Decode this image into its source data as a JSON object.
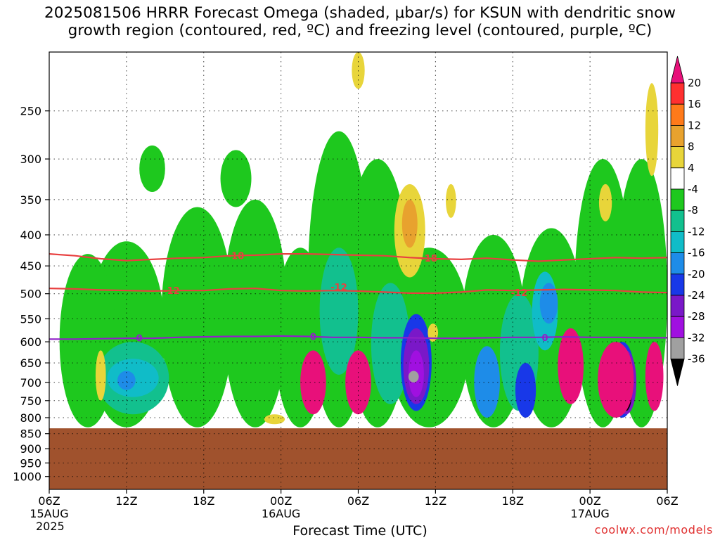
{
  "title": {
    "line1": "2025081506 HRRR Forecast Omega (shaded, μbar/s) for KSUN with dendritic snow",
    "line2": "growth region (contoured, red, ºC) and freezing level (contoured, purple, ºC)"
  },
  "chart_data": {
    "type": "heatmap",
    "xlabel": "Forecast Time (UTC)",
    "ylabel": "",
    "y_scale": "log-pressure",
    "y_inverted": true,
    "ylim": [
      1050,
      200
    ],
    "y_ticks": [
      250,
      300,
      350,
      400,
      450,
      500,
      550,
      600,
      650,
      700,
      750,
      800,
      850,
      900,
      950,
      1000
    ],
    "xlim": [
      "2025-08-15 06Z",
      "2025-08-17 06Z"
    ],
    "x_ticks": [
      {
        "label": "06Z",
        "date": "15AUG",
        "year": "2025"
      },
      {
        "label": "12Z",
        "date": "",
        "year": ""
      },
      {
        "label": "18Z",
        "date": "",
        "year": ""
      },
      {
        "label": "00Z",
        "date": "16AUG",
        "year": ""
      },
      {
        "label": "06Z",
        "date": "",
        "year": ""
      },
      {
        "label": "12Z",
        "date": "",
        "year": ""
      },
      {
        "label": "18Z",
        "date": "",
        "year": ""
      },
      {
        "label": "00Z",
        "date": "17AUG",
        "year": ""
      },
      {
        "label": "06Z",
        "date": "",
        "year": ""
      }
    ],
    "grid": true,
    "ground_below_hpa": 833,
    "colorbar": {
      "labels": [
        "20",
        "16",
        "12",
        "8",
        "4",
        "-4",
        "-8",
        "-12",
        "-16",
        "-20",
        "-24",
        "-28",
        "-32",
        "-36"
      ],
      "bins": [
        {
          "range": ">20",
          "color": "#e8107a"
        },
        {
          "range": "16–20",
          "color": "#ff3030"
        },
        {
          "range": "12–16",
          "color": "#ff7a1a"
        },
        {
          "range": "8–12",
          "color": "#e8a22e"
        },
        {
          "range": "4–8",
          "color": "#e8d53a"
        },
        {
          "range": "-4–4",
          "color": "#ffffff"
        },
        {
          "range": "-8–-4",
          "color": "#1ec81e"
        },
        {
          "range": "-12–-8",
          "color": "#12c08e"
        },
        {
          "range": "-16–-12",
          "color": "#10bcc8"
        },
        {
          "range": "-20–-16",
          "color": "#1e8ce8"
        },
        {
          "range": "-24–-20",
          "color": "#1838e8"
        },
        {
          "range": "-28–-24",
          "color": "#7a18c8"
        },
        {
          "range": "-32–-28",
          "color": "#a010e0"
        },
        {
          "range": "-36–-32",
          "color": "#a0a0a0"
        },
        {
          "range": "<-36",
          "color": "#000000"
        }
      ]
    },
    "contours": [
      {
        "label": "-18",
        "color": "#e84040",
        "points": [
          [
            0,
            430
          ],
          [
            2,
            433
          ],
          [
            4,
            438
          ],
          [
            6,
            441
          ],
          [
            8,
            439
          ],
          [
            10,
            437
          ],
          [
            12,
            436
          ],
          [
            14,
            433
          ],
          [
            16,
            432
          ],
          [
            18,
            430
          ],
          [
            20,
            430
          ],
          [
            22,
            431
          ],
          [
            24,
            432
          ],
          [
            26,
            433
          ],
          [
            28,
            436
          ],
          [
            30,
            438
          ],
          [
            32,
            439
          ],
          [
            34,
            437
          ],
          [
            36,
            440
          ],
          [
            38,
            442
          ],
          [
            40,
            440
          ],
          [
            42,
            438
          ],
          [
            44,
            436
          ],
          [
            46,
            437
          ],
          [
            48,
            436
          ]
        ]
      },
      {
        "label": "-12",
        "color": "#e84040",
        "points": [
          [
            0,
            490
          ],
          [
            2,
            491
          ],
          [
            4,
            493
          ],
          [
            6,
            494
          ],
          [
            8,
            495
          ],
          [
            10,
            494
          ],
          [
            12,
            494
          ],
          [
            14,
            491
          ],
          [
            16,
            490
          ],
          [
            18,
            494
          ],
          [
            20,
            495
          ],
          [
            22,
            494
          ],
          [
            24,
            495
          ],
          [
            26,
            497
          ],
          [
            28,
            499
          ],
          [
            30,
            499
          ],
          [
            32,
            497
          ],
          [
            34,
            493
          ],
          [
            36,
            494
          ],
          [
            38,
            493
          ],
          [
            40,
            492
          ],
          [
            42,
            493
          ],
          [
            44,
            494
          ],
          [
            46,
            497
          ],
          [
            48,
            498
          ]
        ]
      },
      {
        "label": "0",
        "color": "#9020c8",
        "points": [
          [
            0,
            594
          ],
          [
            2,
            594
          ],
          [
            4,
            593
          ],
          [
            6,
            592
          ],
          [
            8,
            592
          ],
          [
            10,
            590
          ],
          [
            12,
            589
          ],
          [
            14,
            588
          ],
          [
            16,
            588
          ],
          [
            18,
            587
          ],
          [
            20,
            588
          ],
          [
            22,
            590
          ],
          [
            24,
            590
          ],
          [
            26,
            591
          ],
          [
            28,
            591
          ],
          [
            30,
            592
          ],
          [
            32,
            592
          ],
          [
            34,
            591
          ],
          [
            36,
            590
          ],
          [
            38,
            590
          ],
          [
            40,
            589
          ],
          [
            42,
            590
          ],
          [
            44,
            590
          ],
          [
            46,
            591
          ],
          [
            48,
            591
          ]
        ]
      }
    ],
    "contour_labels": [
      {
        "text": "-18",
        "hour": 14.5,
        "hpa": 433
      },
      {
        "text": "-18",
        "hour": 29.5,
        "hpa": 437
      },
      {
        "text": "-12",
        "hour": 9.5,
        "hpa": 494
      },
      {
        "text": "-12",
        "hour": 22.5,
        "hpa": 487
      },
      {
        "text": "-12",
        "hour": 36.5,
        "hpa": 498
      },
      {
        "text": "0",
        "hour": 7.0,
        "hpa": 591
      },
      {
        "text": "0",
        "hour": 20.5,
        "hpa": 588
      },
      {
        "text": "0",
        "hour": 38.5,
        "hpa": 590
      }
    ],
    "shaded_regions": [
      {
        "color": "#1ec81e",
        "hour": 6.0,
        "top": 410,
        "bottom": 830,
        "halfwidth": 3.0
      },
      {
        "color": "#1ec81e",
        "hour": 3.0,
        "top": 430,
        "bottom": 830,
        "halfwidth": 2.2
      },
      {
        "color": "#1ec81e",
        "hour": 11.5,
        "top": 360,
        "bottom": 830,
        "halfwidth": 2.8
      },
      {
        "color": "#1ec81e",
        "hour": 16.0,
        "top": 350,
        "bottom": 830,
        "halfwidth": 2.5
      },
      {
        "color": "#1ec81e",
        "hour": 19.5,
        "top": 420,
        "bottom": 830,
        "halfwidth": 2.0
      },
      {
        "color": "#1ec81e",
        "hour": 22.5,
        "top": 270,
        "bottom": 830,
        "halfwidth": 2.4
      },
      {
        "color": "#1ec81e",
        "hour": 25.5,
        "top": 300,
        "bottom": 830,
        "halfwidth": 2.5
      },
      {
        "color": "#1ec81e",
        "hour": 29.5,
        "top": 420,
        "bottom": 830,
        "halfwidth": 3.2
      },
      {
        "color": "#1ec81e",
        "hour": 34.5,
        "top": 400,
        "bottom": 830,
        "halfwidth": 2.5
      },
      {
        "color": "#1ec81e",
        "hour": 39.0,
        "top": 390,
        "bottom": 830,
        "halfwidth": 2.5
      },
      {
        "color": "#1ec81e",
        "hour": 43.0,
        "top": 300,
        "bottom": 830,
        "halfwidth": 2.2
      },
      {
        "color": "#1ec81e",
        "hour": 46.0,
        "top": 300,
        "bottom": 830,
        "halfwidth": 2.0
      },
      {
        "color": "#1ec81e",
        "hour": 8.0,
        "top": 285,
        "bottom": 340,
        "halfwidth": 1.0
      },
      {
        "color": "#1ec81e",
        "hour": 14.5,
        "top": 290,
        "bottom": 360,
        "halfwidth": 1.2
      },
      {
        "color": "#12c08e",
        "hour": 6.5,
        "top": 600,
        "bottom": 790,
        "halfwidth": 2.8
      },
      {
        "color": "#12c08e",
        "hour": 22.5,
        "top": 420,
        "bottom": 680,
        "halfwidth": 1.5
      },
      {
        "color": "#12c08e",
        "hour": 26.5,
        "top": 480,
        "bottom": 760,
        "halfwidth": 1.5
      },
      {
        "color": "#12c08e",
        "hour": 36.5,
        "top": 500,
        "bottom": 780,
        "halfwidth": 1.5
      },
      {
        "color": "#10bcc8",
        "hour": 6.5,
        "top": 640,
        "bottom": 740,
        "halfwidth": 2.0
      },
      {
        "color": "#10bcc8",
        "hour": 38.5,
        "top": 460,
        "bottom": 620,
        "halfwidth": 1.0
      },
      {
        "color": "#1e8ce8",
        "hour": 6.0,
        "top": 670,
        "bottom": 720,
        "halfwidth": 0.7
      },
      {
        "color": "#1e8ce8",
        "hour": 34.0,
        "top": 610,
        "bottom": 800,
        "halfwidth": 1.0
      },
      {
        "color": "#1e8ce8",
        "hour": 38.8,
        "top": 480,
        "bottom": 560,
        "halfwidth": 0.7
      },
      {
        "color": "#1838e8",
        "hour": 37.0,
        "top": 650,
        "bottom": 800,
        "halfwidth": 0.8
      },
      {
        "color": "#1838e8",
        "hour": 44.5,
        "top": 600,
        "bottom": 800,
        "halfwidth": 1.0
      },
      {
        "color": "#1838e8",
        "hour": 28.5,
        "top": 540,
        "bottom": 780,
        "halfwidth": 1.2
      },
      {
        "color": "#7a18c8",
        "hour": 28.5,
        "top": 570,
        "bottom": 760,
        "halfwidth": 1.0
      },
      {
        "color": "#7a18c8",
        "hour": 44.8,
        "top": 620,
        "bottom": 790,
        "halfwidth": 0.8
      },
      {
        "color": "#a010e0",
        "hour": 28.5,
        "top": 620,
        "bottom": 740,
        "halfwidth": 0.6
      },
      {
        "color": "#a0a0a0",
        "hour": 28.3,
        "top": 670,
        "bottom": 700,
        "halfwidth": 0.4
      },
      {
        "color": "#000000",
        "hour": 44.8,
        "top": 680,
        "bottom": 780,
        "halfwidth": 0.45
      },
      {
        "color": "#e8d53a",
        "hour": 28.0,
        "top": 330,
        "bottom": 470,
        "halfwidth": 1.2
      },
      {
        "color": "#e8a22e",
        "hour": 28.0,
        "top": 350,
        "bottom": 420,
        "halfwidth": 0.6
      },
      {
        "color": "#e8d53a",
        "hour": 24.0,
        "top": 200,
        "bottom": 230,
        "halfwidth": 0.5
      },
      {
        "color": "#e8d53a",
        "hour": 46.8,
        "top": 225,
        "bottom": 320,
        "halfwidth": 0.5
      },
      {
        "color": "#e8d53a",
        "hour": 43.2,
        "top": 330,
        "bottom": 380,
        "halfwidth": 0.5
      },
      {
        "color": "#e8d53a",
        "hour": 31.2,
        "top": 330,
        "bottom": 375,
        "halfwidth": 0.4
      },
      {
        "color": "#e8d53a",
        "hour": 4.0,
        "top": 620,
        "bottom": 750,
        "halfwidth": 0.4
      },
      {
        "color": "#e8d53a",
        "hour": 29.8,
        "top": 560,
        "bottom": 600,
        "halfwidth": 0.4
      },
      {
        "color": "#e8d53a",
        "hour": 17.5,
        "top": 790,
        "bottom": 820,
        "halfwidth": 0.8
      },
      {
        "color": "#e8107a",
        "hour": 20.5,
        "top": 620,
        "bottom": 790,
        "halfwidth": 1.0
      },
      {
        "color": "#e8107a",
        "hour": 24.0,
        "top": 620,
        "bottom": 790,
        "halfwidth": 1.0
      },
      {
        "color": "#e8107a",
        "hour": 40.5,
        "top": 570,
        "bottom": 760,
        "halfwidth": 1.0
      },
      {
        "color": "#e8107a",
        "hour": 44.0,
        "top": 600,
        "bottom": 800,
        "halfwidth": 1.4
      },
      {
        "color": "#e8107a",
        "hour": 47.0,
        "top": 600,
        "bottom": 780,
        "halfwidth": 0.7
      }
    ],
    "colors": {
      "ground": "#a0522d",
      "grid": "#000000",
      "frame": "#000000"
    }
  },
  "credit": "coolwx.com/models"
}
